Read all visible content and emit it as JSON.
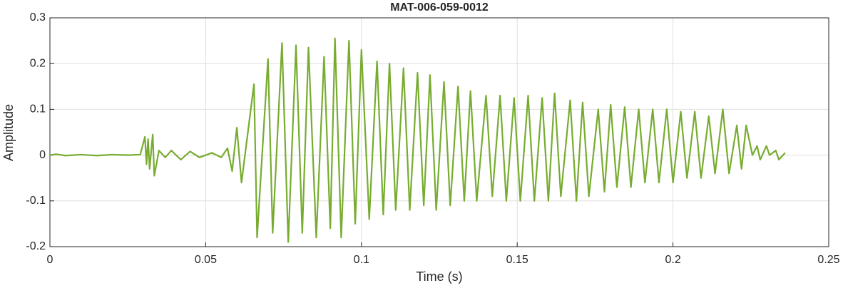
{
  "chart_data": {
    "type": "line",
    "title": "MAT-006-059-0012",
    "xlabel": "Time (s)",
    "ylabel": "Amplitude",
    "color": "#77ac30",
    "grid": true,
    "xlim": [
      0,
      0.25
    ],
    "xticks": [
      0,
      0.05,
      0.1,
      0.15,
      0.2,
      0.25
    ],
    "ylim": [
      -0.2,
      0.3
    ],
    "yticks": [
      -0.2,
      -0.1,
      0,
      0.1,
      0.2,
      0.3
    ],
    "x": [
      0,
      0.002,
      0.005,
      0.01,
      0.015,
      0.02,
      0.025,
      0.029,
      0.0305,
      0.031,
      0.0315,
      0.032,
      0.033,
      0.0335,
      0.035,
      0.037,
      0.039,
      0.042,
      0.045,
      0.048,
      0.052,
      0.055,
      0.057,
      0.0585,
      0.06,
      0.0615,
      0.0655,
      0.0665,
      0.07,
      0.0715,
      0.0745,
      0.0765,
      0.079,
      0.081,
      0.083,
      0.0855,
      0.088,
      0.09,
      0.0915,
      0.0935,
      0.096,
      0.098,
      0.1,
      0.1025,
      0.105,
      0.107,
      0.109,
      0.111,
      0.1135,
      0.1155,
      0.118,
      0.12,
      0.122,
      0.124,
      0.1265,
      0.1285,
      0.131,
      0.133,
      0.135,
      0.137,
      0.14,
      0.142,
      0.1445,
      0.1465,
      0.149,
      0.151,
      0.1535,
      0.1555,
      0.158,
      0.16,
      0.162,
      0.164,
      0.167,
      0.169,
      0.171,
      0.173,
      0.176,
      0.178,
      0.18,
      0.182,
      0.1845,
      0.1865,
      0.189,
      0.191,
      0.1935,
      0.1955,
      0.198,
      0.2,
      0.2025,
      0.2045,
      0.207,
      0.209,
      0.2115,
      0.2135,
      0.216,
      0.218,
      0.2205,
      0.222,
      0.2235,
      0.2255,
      0.227,
      0.228,
      0.23,
      0.231,
      0.233,
      0.234,
      0.236
    ],
    "values": [
      0,
      0.002,
      -0.001,
      0.001,
      -0.001,
      0.001,
      0,
      0.001,
      0.04,
      -0.02,
      0.035,
      -0.03,
      0.045,
      -0.045,
      0.01,
      -0.005,
      0.01,
      -0.01,
      0.008,
      -0.005,
      0.005,
      -0.005,
      0.015,
      -0.035,
      0.06,
      -0.06,
      0.155,
      -0.18,
      0.21,
      -0.17,
      0.245,
      -0.19,
      0.24,
      -0.17,
      0.235,
      -0.18,
      0.215,
      -0.16,
      0.255,
      -0.18,
      0.25,
      -0.15,
      0.23,
      -0.14,
      0.205,
      -0.13,
      0.2,
      -0.12,
      0.19,
      -0.12,
      0.18,
      -0.11,
      0.175,
      -0.12,
      0.16,
      -0.11,
      0.15,
      -0.1,
      0.14,
      -0.1,
      0.13,
      -0.09,
      0.13,
      -0.1,
      0.125,
      -0.1,
      0.13,
      -0.1,
      0.125,
      -0.1,
      0.135,
      -0.09,
      0.12,
      -0.1,
      0.115,
      -0.09,
      0.1,
      -0.08,
      0.11,
      -0.07,
      0.105,
      -0.07,
      0.1,
      -0.06,
      0.1,
      -0.06,
      0.1,
      -0.06,
      0.095,
      -0.05,
      0.095,
      -0.05,
      0.085,
      -0.04,
      0.1,
      -0.04,
      0.065,
      -0.03,
      0.065,
      0,
      0.02,
      -0.01,
      0.02,
      0,
      0.01,
      -0.01,
      0.005
    ]
  }
}
